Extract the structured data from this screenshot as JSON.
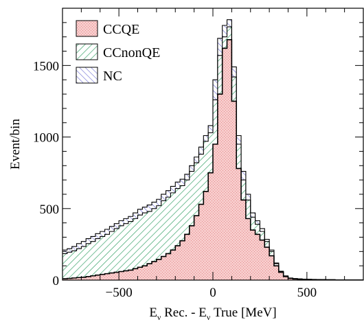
{
  "chart_data": {
    "type": "histogram-stacked",
    "xlabel": "E<sub>ν</sub> Rec. - E<sub>ν</sub> True [MeV]",
    "xlabel_parts": [
      "E",
      "ν",
      " Rec. - E",
      "ν",
      " True [MeV]"
    ],
    "ylabel": "Event/bin",
    "xlim": [
      -800,
      800
    ],
    "ylim": [
      0,
      1900
    ],
    "x_ticks": [
      -500,
      0,
      500
    ],
    "x_tick_labels": [
      "−500",
      "0",
      "500"
    ],
    "y_ticks": [
      0,
      500,
      1000,
      1500
    ],
    "y_tick_labels": [
      "0",
      "500",
      "1000",
      "1500"
    ],
    "bin_width": 25,
    "bin_edges_start": -800,
    "legend_position": "top-left",
    "series": [
      {
        "name": "CCQE",
        "color": "#f2b8b8",
        "values": [
          10,
          12,
          15,
          18,
          20,
          25,
          30,
          35,
          40,
          45,
          50,
          55,
          60,
          65,
          70,
          80,
          90,
          100,
          115,
          130,
          145,
          165,
          185,
          210,
          240,
          275,
          320,
          380,
          450,
          530,
          620,
          750,
          950,
          1300,
          1620,
          1680,
          1250,
          780,
          560,
          430,
          350,
          320,
          280,
          230,
          170,
          100,
          55,
          25,
          12,
          8,
          6,
          5,
          4,
          3,
          3,
          2,
          2,
          2,
          1,
          1,
          1,
          1,
          1,
          1
        ]
      },
      {
        "name": "CCnonQE",
        "color": "#c8ecd8",
        "stacked_totals": [
          185,
          195,
          205,
          220,
          235,
          255,
          270,
          290,
          305,
          320,
          340,
          360,
          380,
          395,
          410,
          430,
          455,
          470,
          480,
          500,
          520,
          555,
          580,
          610,
          640,
          660,
          700,
          760,
          820,
          880,
          970,
          1030,
          1260,
          1570,
          1700,
          1770,
          1420,
          950,
          700,
          560,
          440,
          390,
          340,
          270,
          200,
          115,
          60,
          28,
          14,
          10,
          8,
          6,
          5,
          4,
          4,
          3,
          3,
          3,
          2,
          2,
          2,
          1,
          1,
          1
        ]
      },
      {
        "name": "NC",
        "color": "#ffffff",
        "stacked_totals": [
          210,
          220,
          235,
          255,
          270,
          290,
          305,
          325,
          340,
          355,
          375,
          395,
          415,
          430,
          445,
          470,
          495,
          510,
          525,
          545,
          565,
          600,
          625,
          655,
          685,
          705,
          740,
          800,
          860,
          930,
          1010,
          1080,
          1400,
          1690,
          1780,
          1820,
          1490,
          1010,
          760,
          600,
          470,
          415,
          360,
          285,
          210,
          120,
          62,
          30,
          15,
          11,
          9,
          7,
          6,
          5,
          4,
          4,
          3,
          3,
          2,
          2,
          2,
          1,
          1,
          1
        ]
      }
    ],
    "colors": {
      "ccqe_fill": "#f2b8b8",
      "ccqe_pattern": "#e58a8a",
      "ccnonqe_fill": "#e8f7ee",
      "ccnonqe_hatch": "#3aa36a",
      "nc_fill": "#ffffff",
      "nc_hatch": "#5a5ad0",
      "line": "#000000"
    }
  }
}
